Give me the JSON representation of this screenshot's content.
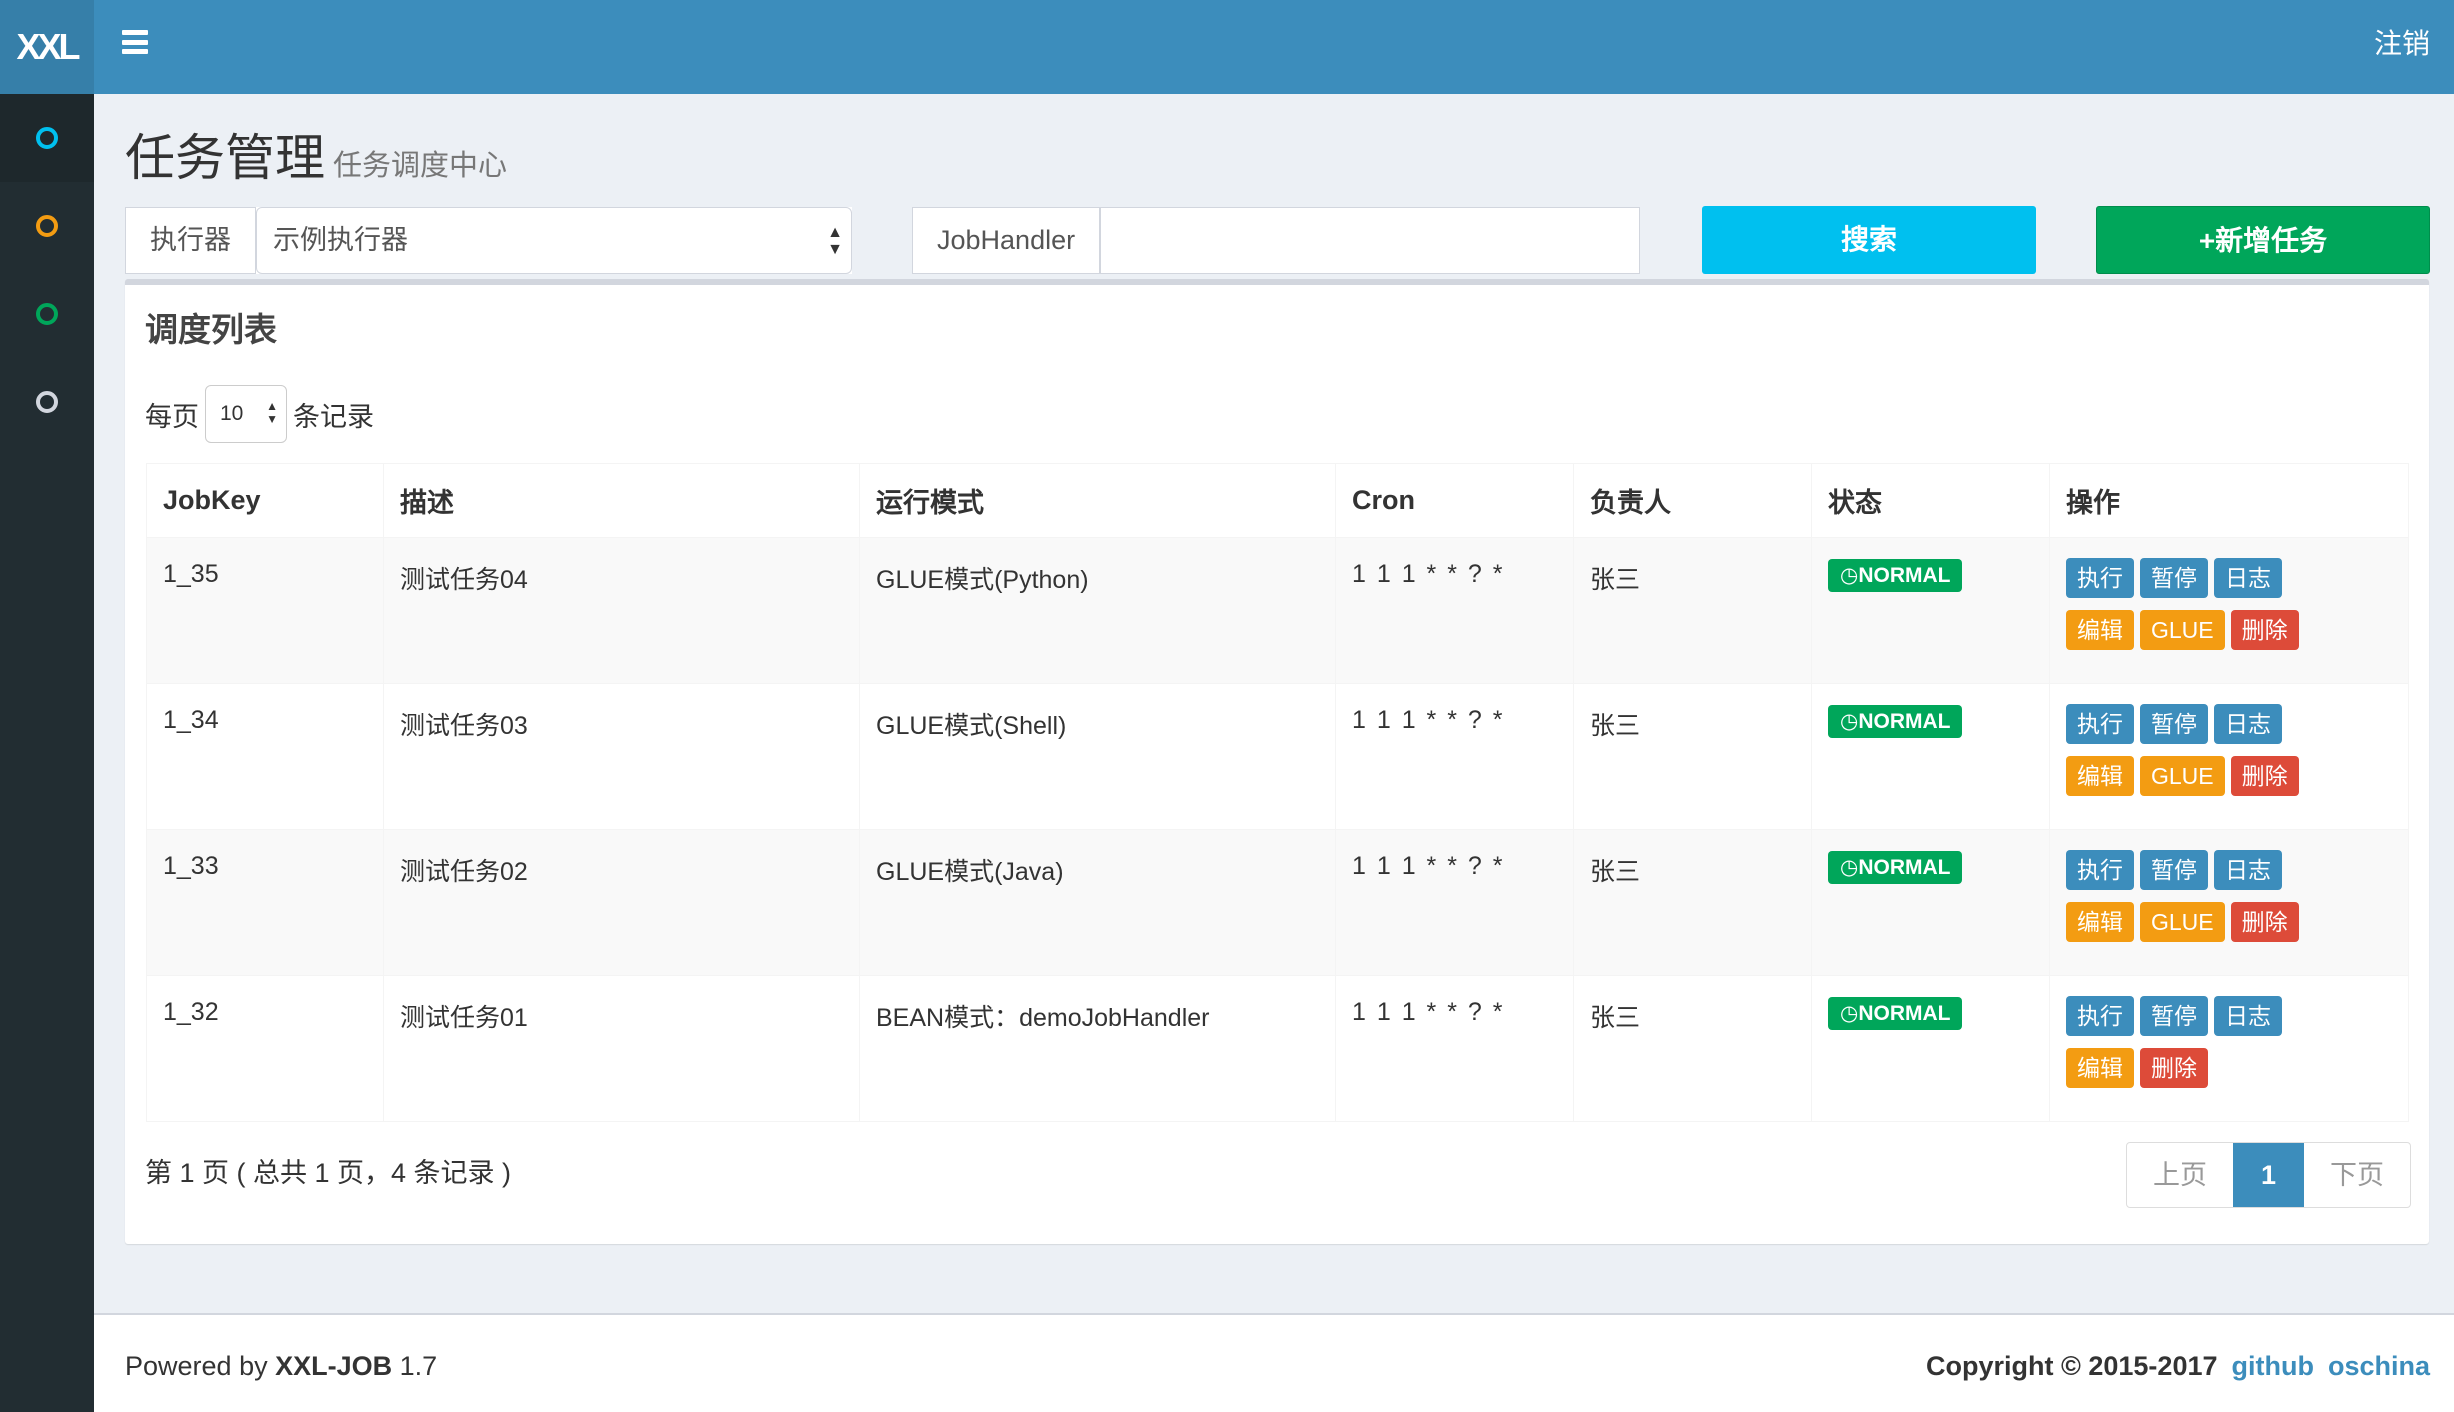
{
  "header": {
    "logo": "XXL",
    "logout": "注销"
  },
  "sidebar": {
    "items": [
      {
        "icon": "circle-icon",
        "color": "#00c0ef"
      },
      {
        "icon": "circle-icon",
        "color": "#f39c12"
      },
      {
        "icon": "circle-icon",
        "color": "#00a65a"
      },
      {
        "icon": "circle-icon",
        "color": "#d2d6de"
      }
    ]
  },
  "page": {
    "title": "任务管理",
    "subtitle": "任务调度中心"
  },
  "filters": {
    "executor_label": "执行器",
    "executor_value": "示例执行器",
    "handler_label": "JobHandler",
    "handler_value": "",
    "search": "搜索",
    "add": "+新增任务"
  },
  "box": {
    "title": "调度列表",
    "per_page_prefix": "每页",
    "per_page_value": "10",
    "per_page_suffix": "条记录"
  },
  "table": {
    "columns": [
      "JobKey",
      "描述",
      "运行模式",
      "Cron",
      "负责人",
      "状态",
      "操作"
    ],
    "rows": [
      {
        "key": "1_35",
        "desc": "测试任务04",
        "mode": "GLUE模式(Python)",
        "cron": "1 1 1 * * ? *",
        "owner": "张三",
        "status": "NORMAL",
        "ops": [
          "执行",
          "暂停",
          "日志",
          "编辑",
          "GLUE",
          "删除"
        ]
      },
      {
        "key": "1_34",
        "desc": "测试任务03",
        "mode": "GLUE模式(Shell)",
        "cron": "1 1 1 * * ? *",
        "owner": "张三",
        "status": "NORMAL",
        "ops": [
          "执行",
          "暂停",
          "日志",
          "编辑",
          "GLUE",
          "删除"
        ]
      },
      {
        "key": "1_33",
        "desc": "测试任务02",
        "mode": "GLUE模式(Java)",
        "cron": "1 1 1 * * ? *",
        "owner": "张三",
        "status": "NORMAL",
        "ops": [
          "执行",
          "暂停",
          "日志",
          "编辑",
          "GLUE",
          "删除"
        ]
      },
      {
        "key": "1_32",
        "desc": "测试任务01",
        "mode": "BEAN模式：demoJobHandler",
        "cron": "1 1 1 * * ? *",
        "owner": "张三",
        "status": "NORMAL",
        "ops": [
          "执行",
          "暂停",
          "日志",
          "编辑",
          "删除"
        ]
      }
    ]
  },
  "pagination": {
    "info": "第 1 页 ( 总共 1 页，4 条记录 )",
    "prev": "上页",
    "current": "1",
    "next": "下页"
  },
  "footer": {
    "powered_prefix": "Powered by ",
    "product": "XXL-JOB",
    "version": " 1.7",
    "copyright": "Copyright © 2015-2017",
    "links": [
      "github",
      "oschina"
    ]
  },
  "colors": {
    "primary": "#3c8dbc",
    "info": "#00c0ef",
    "success": "#00a65a",
    "warning": "#f39c12",
    "danger": "#dd4b39"
  }
}
